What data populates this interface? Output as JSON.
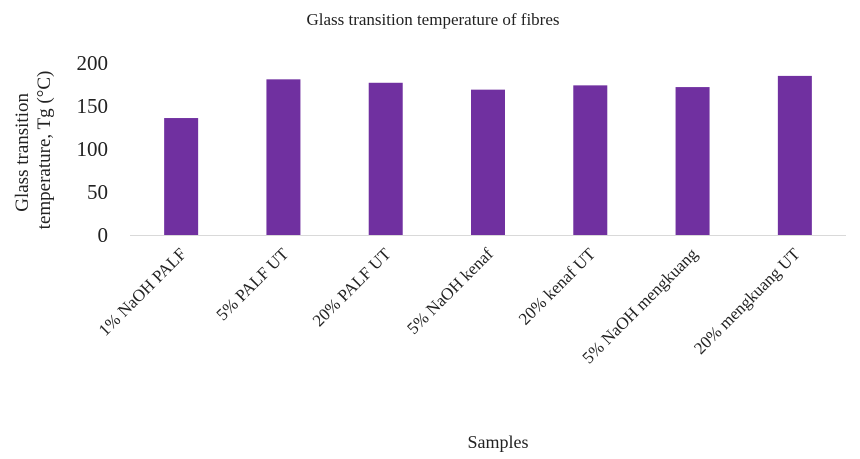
{
  "chart_data": {
    "type": "bar",
    "title": "Glass transition temperature of fibres",
    "xlabel": "Samples",
    "ylabel_lines": [
      "Glass transition",
      "temperature,  Tg (°C)"
    ],
    "categories": [
      "1% NaOH PALF",
      "5% PALF UT",
      "20% PALF UT",
      "5% NaOH kenaf",
      "20% kenaf UT",
      "5% NaOH mengkuang",
      "20% mengkuang UT"
    ],
    "values": [
      136,
      181,
      177,
      169,
      174,
      172,
      185
    ],
    "ylim": [
      0,
      200
    ],
    "yticks": [
      "0",
      "50",
      "100",
      "150",
      "200"
    ],
    "grid": false,
    "legend": "none",
    "bar_color": "#7030a0",
    "axis_color": "#d9d9d9"
  }
}
